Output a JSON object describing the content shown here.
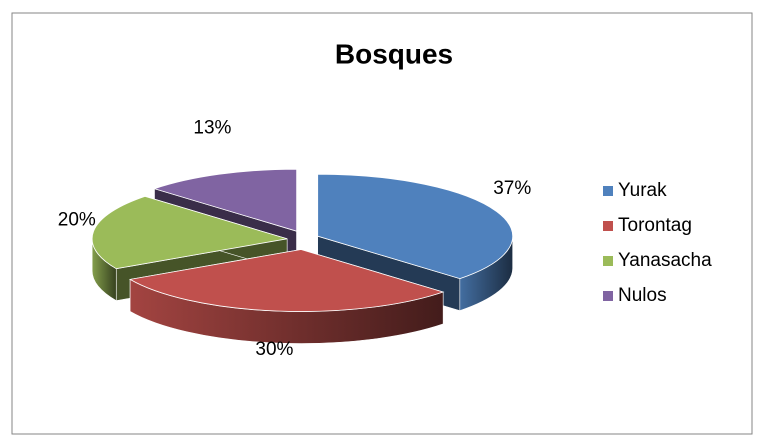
{
  "chart_data": {
    "type": "pie3d",
    "title": "Bosques",
    "categories": [
      "Yurak",
      "Torontag",
      "Yanasacha",
      "Nulos"
    ],
    "values": [
      37,
      30,
      20,
      13
    ],
    "value_labels": [
      "37%",
      "30%",
      "20%",
      "13%"
    ],
    "colors": [
      "#4f81bd",
      "#c0504d",
      "#9bbb59",
      "#8064a2"
    ],
    "legend": "right"
  }
}
